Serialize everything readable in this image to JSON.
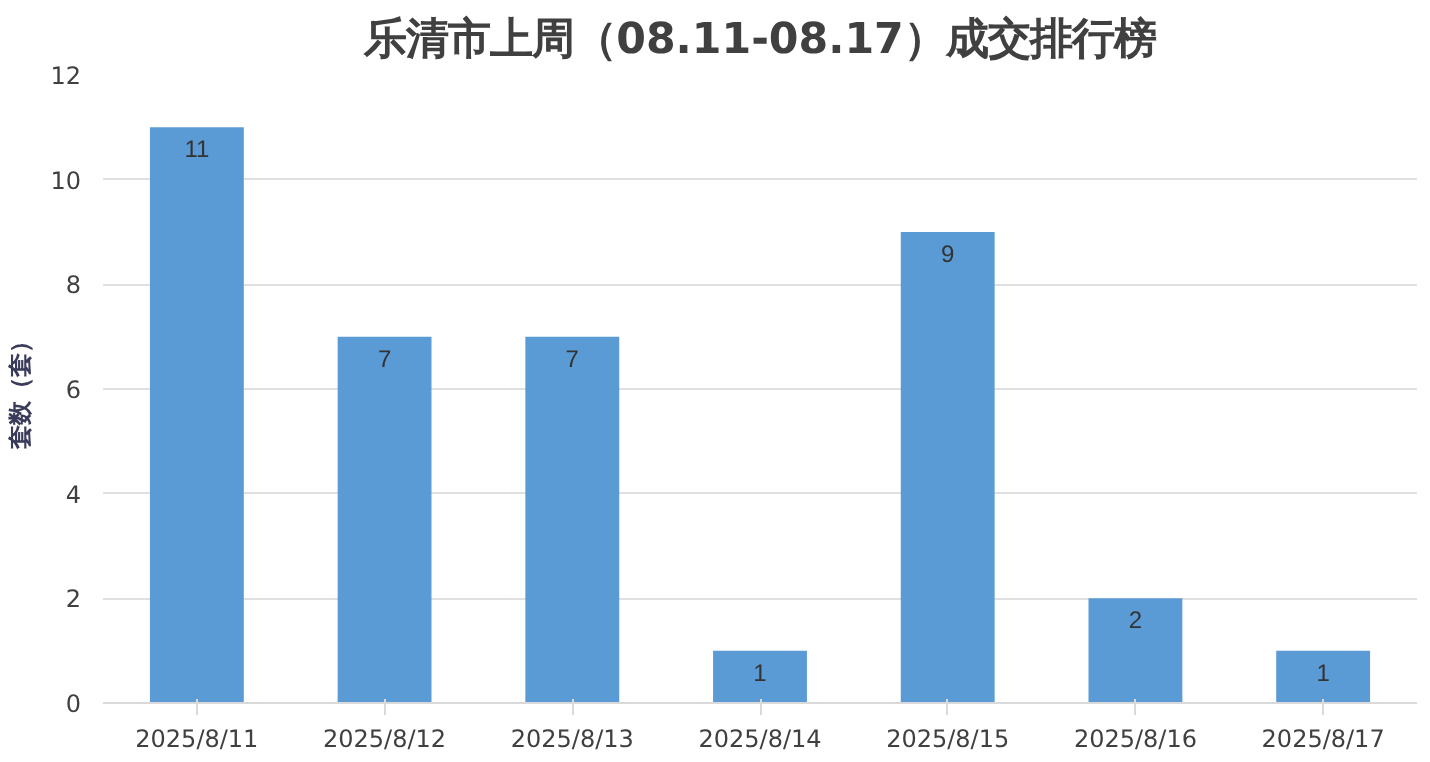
{
  "chart_data": {
    "type": "bar",
    "title": "乐清市上周（08.11-08.17）成交排行榜",
    "ylabel": "套数（套）",
    "categories": [
      "2025/8/11",
      "2025/8/12",
      "2025/8/13",
      "2025/8/14",
      "2025/8/15",
      "2025/8/16",
      "2025/8/17"
    ],
    "values": [
      11,
      7,
      7,
      1,
      9,
      2,
      1
    ],
    "color": "#5b9bd5",
    "ylim": [
      0,
      12
    ],
    "yticks": [
      0,
      2,
      4,
      6,
      8,
      10,
      12
    ],
    "grid": "y",
    "data_labels": true
  }
}
